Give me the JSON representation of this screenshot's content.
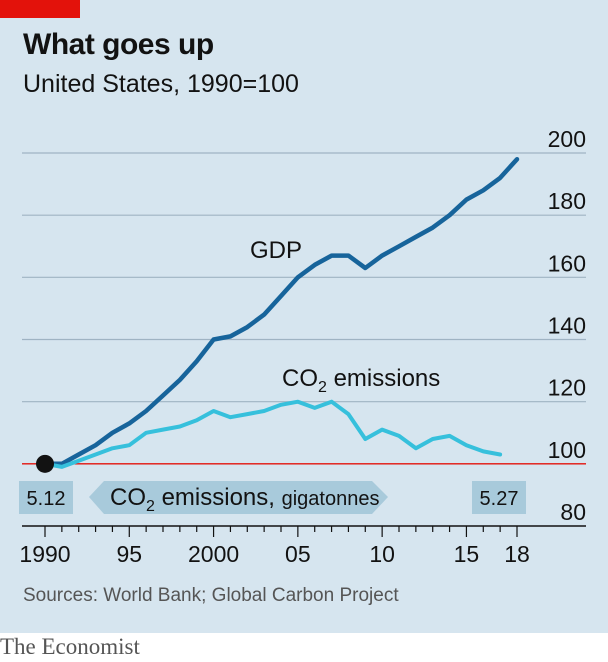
{
  "title": "What goes up",
  "subtitle": "United States, 1990=100",
  "source": "Sources: World Bank; Global Carbon Project",
  "brand": "The Economist",
  "colors": {
    "background": "#d6e5ef",
    "gdp": "#17649b",
    "co2": "#36c0dc",
    "baseline": "#e3120b",
    "grid": "#9fb3c3",
    "box": "#a8cadb",
    "accent": "#e3120b"
  },
  "chart_data": {
    "type": "line",
    "title": "What goes up",
    "subtitle": "United States, 1990=100",
    "xlim": [
      1990,
      2018
    ],
    "ylim": [
      80,
      200
    ],
    "y_ticks": [
      80,
      100,
      120,
      140,
      160,
      180,
      200
    ],
    "x_ticks": [
      {
        "value": 1990,
        "label": "1990"
      },
      {
        "value": 1995,
        "label": "95"
      },
      {
        "value": 2000,
        "label": "2000"
      },
      {
        "value": 2005,
        "label": "05"
      },
      {
        "value": 2010,
        "label": "10"
      },
      {
        "value": 2015,
        "label": "15"
      },
      {
        "value": 2018,
        "label": "18"
      }
    ],
    "grid": true,
    "baseline": 100,
    "x": [
      1990,
      1991,
      1992,
      1993,
      1994,
      1995,
      1996,
      1997,
      1998,
      1999,
      2000,
      2001,
      2002,
      2003,
      2004,
      2005,
      2006,
      2007,
      2008,
      2009,
      2010,
      2011,
      2012,
      2013,
      2014,
      2015,
      2016,
      2017,
      2018
    ],
    "series": [
      {
        "name": "GDP",
        "values": [
          100,
          100,
          103,
          106,
          110,
          113,
          117,
          122,
          127,
          133,
          140,
          141,
          144,
          148,
          154,
          160,
          164,
          167,
          167,
          163,
          167,
          170,
          173,
          176,
          180,
          185,
          188,
          192,
          198
        ]
      },
      {
        "name": "CO2 emissions",
        "values": [
          100,
          99,
          101,
          103,
          105,
          106,
          110,
          111,
          112,
          114,
          117,
          115,
          116,
          117,
          119,
          120,
          118,
          120,
          116,
          108,
          111,
          109,
          105,
          108,
          109,
          106,
          104,
          103,
          null
        ]
      }
    ],
    "annotations": {
      "gdp_label": "GDP",
      "co2_label_main": "CO",
      "co2_label_sub": "2",
      "co2_label_rest": " emissions",
      "start_marker": {
        "x": 1990,
        "y": 100
      },
      "box_left_value": "5.12",
      "box_right_value": "5.27",
      "box_middle_main": "CO",
      "box_middle_sub": "2",
      "box_middle_rest": " emissions, ",
      "box_middle_unit": "gigatonnes"
    }
  }
}
